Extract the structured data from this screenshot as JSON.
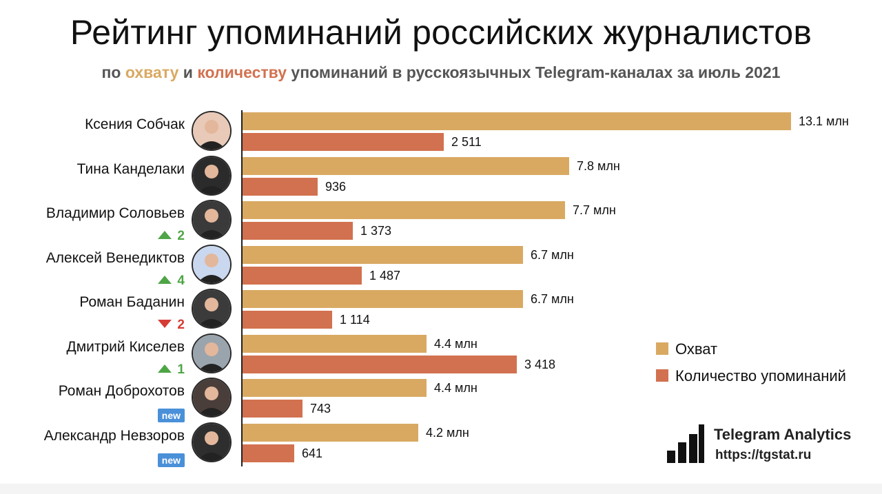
{
  "chart_data": {
    "type": "bar",
    "orientation": "horizontal",
    "title": "Рейтинг упоминаний российских журналистов",
    "subtitle": {
      "prefix": "по ",
      "reach_word": "охвату",
      "middle": " и ",
      "count_word": "количеству",
      "suffix": " упоминаний в русскоязычных Telegram-каналах за июль 2021"
    },
    "categories": [
      "Ксения Собчак",
      "Тина Канделаки",
      "Владимир Соловьев",
      "Алексей Венедиктов",
      "Роман Баданин",
      "Дмитрий Киселев",
      "Роман Доброхотов",
      "Александр Невзоров"
    ],
    "series": [
      {
        "name": "Охват",
        "color": "#d9a962",
        "values": [
          13.1,
          7.8,
          7.7,
          6.7,
          6.7,
          4.4,
          4.4,
          4.2
        ],
        "labels": [
          "13.1 млн",
          "7.8 млн",
          "7.7 млн",
          "6.7 млн",
          "6.7 млн",
          "4.4 млн",
          "4.4 млн",
          "4.2 млн"
        ]
      },
      {
        "name": "Количество упоминаний",
        "color": "#d2714f",
        "values": [
          2511,
          936,
          1373,
          1487,
          1114,
          3418,
          743,
          641
        ],
        "labels": [
          "2 511",
          "936",
          "1 373",
          "1 487",
          "1 114",
          "3 418",
          "743",
          "641"
        ]
      }
    ],
    "rank_changes": [
      {
        "type": "none",
        "text": ""
      },
      {
        "type": "none",
        "text": ""
      },
      {
        "type": "up",
        "text": "2"
      },
      {
        "type": "up",
        "text": "4"
      },
      {
        "type": "down",
        "text": "2"
      },
      {
        "type": "up",
        "text": "1"
      },
      {
        "type": "new",
        "text": "new"
      },
      {
        "type": "new",
        "text": "new"
      }
    ],
    "legend_position": "right",
    "grid": false
  },
  "branding": {
    "name": "Telegram Analytics",
    "url": "https://tgstat.ru"
  }
}
